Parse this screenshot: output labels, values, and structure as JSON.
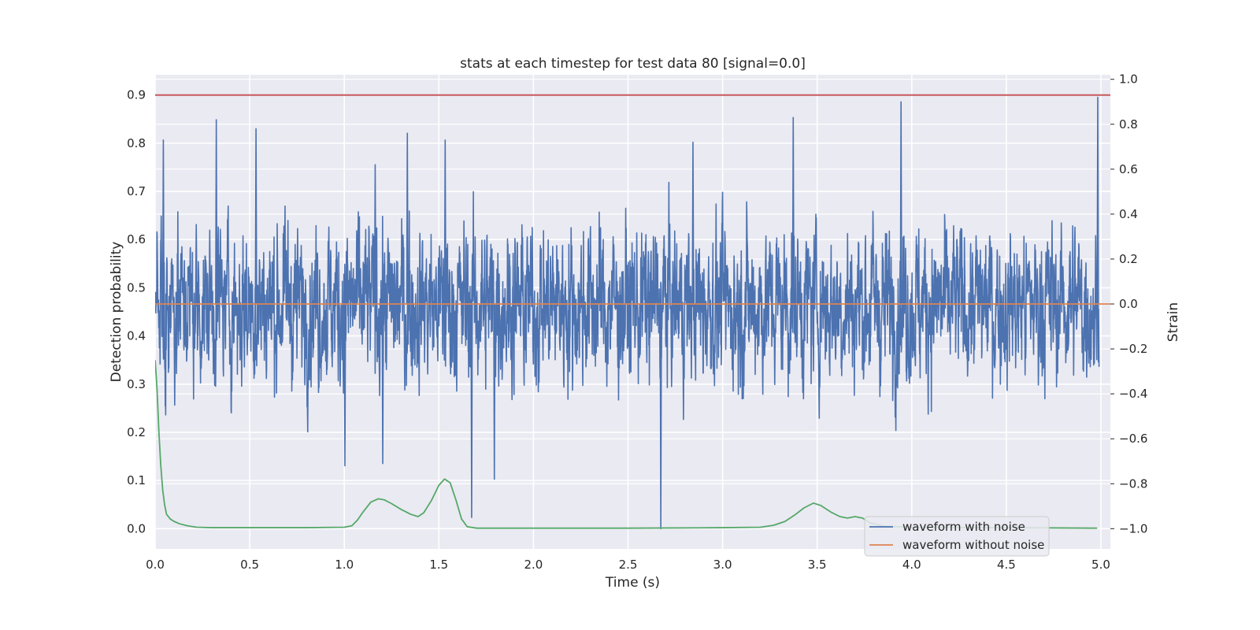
{
  "chart_data": {
    "type": "line",
    "title": "stats at each timestep for test data 80 [signal=0.0]",
    "xlabel": "Time (s)",
    "ylabel": "Detection probability",
    "y2label": "Strain",
    "xlim": [
      0.0,
      5.05
    ],
    "ylim": [
      -0.042,
      0.942
    ],
    "y2lim": [
      -1.09,
      1.02
    ],
    "xticks": [
      "0.0",
      "0.5",
      "1.0",
      "1.5",
      "2.0",
      "2.5",
      "3.0",
      "3.5",
      "4.0",
      "4.5",
      "5.0"
    ],
    "yticks": [
      "0.0",
      "0.1",
      "0.2",
      "0.3",
      "0.4",
      "0.5",
      "0.6",
      "0.7",
      "0.8",
      "0.9"
    ],
    "y2ticks": [
      "−1.0",
      "−0.8",
      "−0.6",
      "−0.4",
      "−0.2",
      "0.0",
      "0.2",
      "0.4",
      "0.6",
      "0.8",
      "1.0"
    ],
    "grid": true,
    "legend_position": "lower-right",
    "threshold": {
      "y": 0.9,
      "color": "#c44e52"
    },
    "series": [
      {
        "name": "waveform with noise",
        "axis": "right",
        "color": "#4c72b0",
        "style": "noise",
        "range": [
          -0.95,
          0.95
        ],
        "spikes": [
          [
            0.04,
            0.73
          ],
          [
            0.32,
            0.82
          ],
          [
            0.53,
            0.78
          ],
          [
            1.16,
            0.62
          ],
          [
            1.33,
            0.76
          ],
          [
            1.53,
            0.73
          ],
          [
            1.79,
            -0.78
          ],
          [
            2.67,
            -1.0
          ],
          [
            2.84,
            0.72
          ],
          [
            3.37,
            0.83
          ],
          [
            3.94,
            0.9
          ],
          [
            4.98,
            0.92
          ],
          [
            1.2,
            -0.71
          ],
          [
            1.67,
            -0.95
          ],
          [
            1.0,
            -0.72
          ]
        ]
      },
      {
        "name": "waveform without noise",
        "axis": "right",
        "color": "#dd8452",
        "style": "flat",
        "value": 0.0
      },
      {
        "name": "detection probability",
        "axis": "left",
        "color": "#55a868",
        "x": [
          0.0,
          0.01,
          0.02,
          0.03,
          0.04,
          0.05,
          0.06,
          0.08,
          0.1,
          0.13,
          0.17,
          0.22,
          0.3,
          0.5,
          0.8,
          1.0,
          1.04,
          1.07,
          1.1,
          1.14,
          1.18,
          1.21,
          1.25,
          1.3,
          1.35,
          1.39,
          1.42,
          1.46,
          1.5,
          1.53,
          1.56,
          1.59,
          1.62,
          1.65,
          1.7,
          2.0,
          2.5,
          3.0,
          3.2,
          3.27,
          3.33,
          3.38,
          3.43,
          3.48,
          3.52,
          3.57,
          3.62,
          3.66,
          3.7,
          3.74,
          3.78,
          3.85,
          4.0,
          4.5,
          4.98
        ],
        "y": [
          0.35,
          0.29,
          0.2,
          0.13,
          0.08,
          0.05,
          0.03,
          0.02,
          0.015,
          0.01,
          0.006,
          0.003,
          0.002,
          0.002,
          0.002,
          0.003,
          0.006,
          0.018,
          0.035,
          0.055,
          0.062,
          0.06,
          0.052,
          0.04,
          0.03,
          0.025,
          0.033,
          0.058,
          0.09,
          0.103,
          0.095,
          0.06,
          0.02,
          0.004,
          0.001,
          0.001,
          0.001,
          0.002,
          0.003,
          0.007,
          0.015,
          0.028,
          0.043,
          0.053,
          0.048,
          0.035,
          0.025,
          0.022,
          0.025,
          0.022,
          0.012,
          0.005,
          0.003,
          0.002,
          0.001
        ]
      }
    ]
  }
}
